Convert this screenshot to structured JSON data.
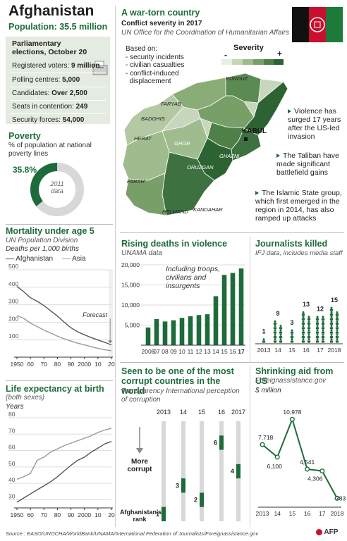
{
  "header": {
    "title": "Afghanistan",
    "population": "Population: 35.5 million"
  },
  "elections": {
    "title": "Parliamentary elections, October 20",
    "rows": [
      {
        "label": "Registered voters:",
        "value": "9 million"
      },
      {
        "label": "Polling centres:",
        "value": "5,000"
      },
      {
        "label": "Candidates:",
        "value": "Over 2,500"
      },
      {
        "label": "Seats in contention:",
        "value": "249"
      },
      {
        "label": "Security forces:",
        "value": "54,000"
      }
    ]
  },
  "poverty": {
    "title": "Poverty",
    "subtitle": "% of population at national poverty lines",
    "value_label": "35.8%",
    "value": 35.8,
    "year_label": "2011",
    "data_label": "data"
  },
  "map": {
    "title": "A war-torn country",
    "subtitle": "Conflict severity in 2017",
    "source": "UN Office for the Coordination of Humanitarian Affairs",
    "based_on": "Based on:",
    "criteria": [
      "- security incidents",
      "- civilian casualties",
      "- conflict-induced",
      "  displacement"
    ],
    "severity_label": "Severity",
    "severity_min": "-",
    "severity_max": "+",
    "places": [
      "KUNDUZ",
      "FARYAB",
      "BADGHIS",
      "HERAT",
      "GHOR",
      "KABUL",
      "NANGARHAR",
      "GHAZNI",
      "ORUZGAN",
      "FARAH",
      "HELMAND",
      "KANDAHAR"
    ],
    "notes": [
      "Violence has surged 17 years after the US-led invasion",
      "The Taliban have made significant battlefield gains",
      "The Islamic State group, which first emerged in the region in 2014, has also ramped up attacks"
    ]
  },
  "colors": {
    "dark_green": "#1e6b3a",
    "mid_green": "#6e9a62",
    "light_green": "#c3d4b6",
    "panel_bg": "#e4ebe0",
    "grey": "#d8d8d8"
  },
  "credits": {
    "source": "Source : EASO/UNOCHA/WorldBank/UNAMA/International Federation of Journalists/Foreignassistance.gov",
    "agency": "AFP"
  },
  "chart_data": [
    {
      "id": "mortality",
      "type": "line",
      "title": "Mortality under age 5",
      "subtitle": "UN Population Division",
      "unit_label": "Deaths per 1,000 births",
      "annotation": "Forecast",
      "x_ticks": [
        "1950",
        "60",
        "70",
        "80",
        "90",
        "2000",
        "10",
        "20"
      ],
      "y_ticks": [
        100,
        200,
        300,
        400,
        500
      ],
      "ylim": [
        0,
        500
      ],
      "xlim": [
        1950,
        2020
      ],
      "series": [
        {
          "name": "Afghanistan",
          "x": [
            1950,
            1955,
            1960,
            1965,
            1970,
            1975,
            1980,
            1985,
            1990,
            1995,
            2000,
            2005,
            2010,
            2015,
            2020
          ],
          "y": [
            405,
            375,
            340,
            320,
            295,
            265,
            235,
            200,
            168,
            145,
            128,
            112,
            98,
            85,
            70
          ]
        },
        {
          "name": "Asia",
          "x": [
            1950,
            1955,
            1960,
            1965,
            1970,
            1975,
            1980,
            1985,
            1990,
            1995,
            2000,
            2005,
            2010,
            2015,
            2020
          ],
          "y": [
            238,
            222,
            195,
            175,
            155,
            138,
            120,
            105,
            92,
            80,
            70,
            60,
            50,
            42,
            37
          ]
        }
      ]
    },
    {
      "id": "life_expectancy",
      "type": "line",
      "title": "Life expectancy at birth",
      "subtitle": "(both sexes)",
      "unit_label": "Years",
      "x_ticks": [
        "1950",
        "60",
        "70",
        "80",
        "90",
        "2000",
        "10",
        "20"
      ],
      "y_ticks": [
        30,
        40,
        50,
        60,
        70,
        80
      ],
      "ylim": [
        25,
        80
      ],
      "xlim": [
        1950,
        2020
      ],
      "series": [
        {
          "name": "Afghanistan",
          "x": [
            1950,
            1955,
            1960,
            1965,
            1970,
            1975,
            1980,
            1985,
            1990,
            1995,
            2000,
            2005,
            2010,
            2015,
            2020
          ],
          "y": [
            28.5,
            31,
            33.5,
            36,
            38.5,
            41,
            44,
            47.5,
            51,
            54,
            56,
            59,
            61.5,
            64,
            65.5
          ]
        },
        {
          "name": "Asia",
          "x": [
            1950,
            1955,
            1960,
            1965,
            1970,
            1975,
            1980,
            1985,
            1990,
            1995,
            2000,
            2005,
            2010,
            2015,
            2020
          ],
          "y": [
            42.5,
            44,
            46,
            54,
            56,
            59,
            61,
            63,
            64.5,
            66,
            67.5,
            69,
            71,
            72.5,
            73.5
          ]
        }
      ]
    },
    {
      "id": "violence",
      "type": "bar",
      "title": "Rising deaths in violence",
      "subtitle": "UNAMA data",
      "annotation": "Including troops, civilians and insurgents",
      "categories": [
        "2006",
        "07",
        "08",
        "09",
        "10",
        "11",
        "12",
        "13",
        "14",
        "15",
        "16",
        "17"
      ],
      "values": [
        4400,
        6500,
        5900,
        6200,
        6800,
        7200,
        7500,
        7700,
        12200,
        17500,
        18000,
        19100
      ],
      "y_ticks": [
        5000,
        10000,
        15000,
        20000
      ],
      "y_tick_labels": [
        "5,000",
        "10,000",
        "15,000",
        "20,000"
      ],
      "ylim": [
        0,
        20000
      ]
    },
    {
      "id": "journalists",
      "type": "bar",
      "title": "Journalists killed",
      "subtitle": "IFJ data, includes media staff",
      "categories": [
        "2013",
        "14",
        "15",
        "16",
        "17",
        "2018"
      ],
      "x_labels": [
        "2013",
        "14",
        "15",
        "16",
        "17",
        "2018"
      ],
      "values": [
        1,
        9,
        3,
        13,
        12,
        15
      ]
    },
    {
      "id": "corruption",
      "type": "table",
      "title": "Seen to be one of the most corrupt countries in the world",
      "subtitle": "Transparency International perception of corruption",
      "years": [
        "2013",
        "14",
        "15",
        "16",
        "2017"
      ],
      "ranks": [
        1,
        3,
        2,
        6,
        4
      ],
      "rank_labels": [
        "1",
        "3",
        "2",
        "6",
        "4"
      ],
      "arrow_label": "More corrupt",
      "footer_label": "Afghanistan's rank",
      "scale_max": 7
    },
    {
      "id": "aid",
      "type": "line",
      "title": "Shrinking aid from US",
      "subtitle": "Foreignassistance.gov",
      "unit_label": "$ million",
      "x": [
        "2013",
        "14",
        "15",
        "16",
        "17",
        "2018"
      ],
      "y": [
        7718,
        6100,
        10978,
        4541,
        4306,
        783
      ],
      "value_labels": [
        "7,718",
        "6,100",
        "10,978",
        "4,541",
        "4,306",
        "783"
      ],
      "ylim": [
        0,
        12000
      ]
    }
  ]
}
